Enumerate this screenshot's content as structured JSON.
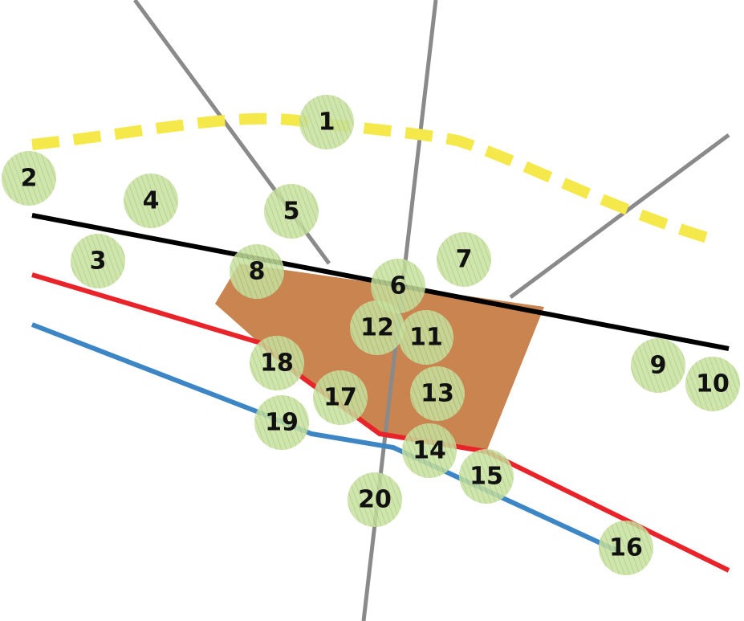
{
  "colors": {
    "background": "#ffffff",
    "gray_line": "#8a8a8a",
    "black_line": "#000000",
    "red_line": "#e8242a",
    "blue_line": "#3d86c6",
    "yellow_dashed": "#f5e84a",
    "plot_fill": "#c98450",
    "tree_fill": "#c8e0a0",
    "tree_stroke": "#9cc26a"
  },
  "trees": [
    {
      "id": "1",
      "label": "1"
    },
    {
      "id": "2",
      "label": "2"
    },
    {
      "id": "3",
      "label": "3"
    },
    {
      "id": "4",
      "label": "4"
    },
    {
      "id": "5",
      "label": "5"
    },
    {
      "id": "6",
      "label": "6"
    },
    {
      "id": "7",
      "label": "7"
    },
    {
      "id": "8",
      "label": "8"
    },
    {
      "id": "9",
      "label": "9"
    },
    {
      "id": "10",
      "label": "10"
    },
    {
      "id": "11",
      "label": "11"
    },
    {
      "id": "12",
      "label": "12"
    },
    {
      "id": "13",
      "label": "13"
    },
    {
      "id": "14",
      "label": "14"
    },
    {
      "id": "15",
      "label": "15"
    },
    {
      "id": "16",
      "label": "16"
    },
    {
      "id": "17",
      "label": "17"
    },
    {
      "id": "18",
      "label": "18"
    },
    {
      "id": "19",
      "label": "19"
    },
    {
      "id": "20",
      "label": "20"
    }
  ]
}
